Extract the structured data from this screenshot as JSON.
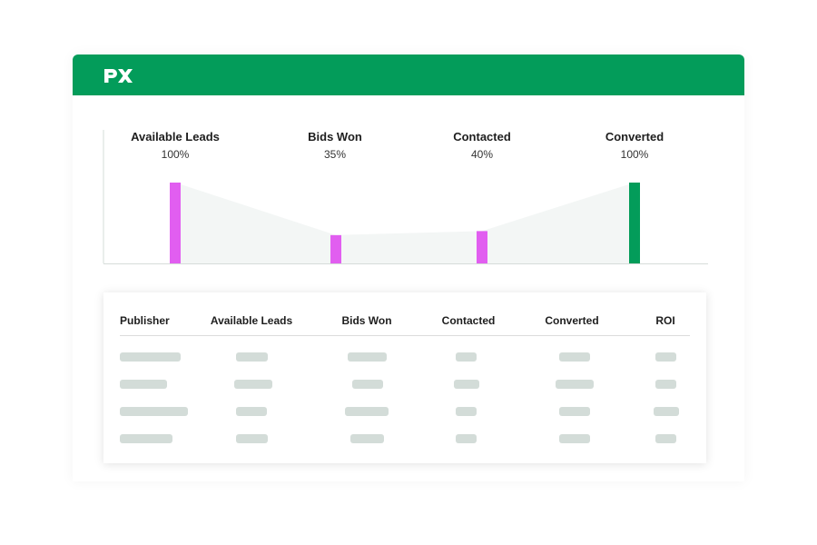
{
  "colors": {
    "brand_green": "#039c5a",
    "funnel_purple": "#e15ef0",
    "funnel_fill": "#f3f6f5",
    "axis": "#d6dcda",
    "placeholder": "#d3dcd8"
  },
  "header": {
    "logo": "px",
    "logo_icon": "px-logo-icon"
  },
  "funnel": {
    "stages": [
      {
        "name": "Available Leads",
        "percent": "100%",
        "value": 100,
        "highlight": false
      },
      {
        "name": "Bids Won",
        "percent": "35%",
        "value": 35,
        "highlight": false
      },
      {
        "name": "Contacted",
        "percent": "40%",
        "value": 40,
        "highlight": false
      },
      {
        "name": "Converted",
        "percent": "100%",
        "value": 100,
        "highlight": true
      }
    ]
  },
  "table": {
    "columns": [
      "Publisher",
      "Available Leads",
      "Bids Won",
      "Contacted",
      "Converted",
      "ROI"
    ],
    "rows_loading": 4
  }
}
